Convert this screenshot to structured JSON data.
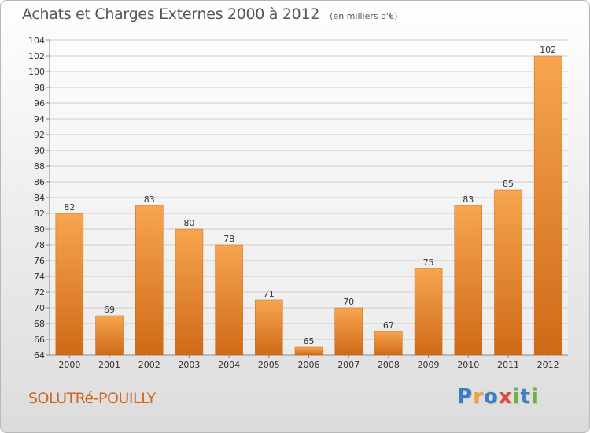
{
  "header": {
    "title": "Achats et Charges Externes 2000 à 2012",
    "subtitle": "(en milliers d'€)"
  },
  "footer": {
    "location": "SOLUTRé-POUILLY",
    "brand": "Proxiti",
    "brand_letters": [
      {
        "ch": "P",
        "color": "#3a7fc4"
      },
      {
        "ch": "r",
        "color": "#f2a22c"
      },
      {
        "ch": "o",
        "color": "#3a7fc4"
      },
      {
        "ch": "x",
        "color": "#e2473a"
      },
      {
        "ch": "i",
        "color": "#6ab344"
      },
      {
        "ch": "t",
        "color": "#3a7fc4"
      },
      {
        "ch": "i",
        "color": "#6ab344"
      }
    ]
  },
  "chart_data": {
    "type": "bar",
    "title": "Achats et Charges Externes 2000 à 2012",
    "subtitle": "(en milliers d'€)",
    "categories": [
      "2000",
      "2001",
      "2002",
      "2003",
      "2004",
      "2005",
      "2006",
      "2007",
      "2008",
      "2009",
      "2010",
      "2011",
      "2012"
    ],
    "values": [
      82,
      69,
      83,
      80,
      78,
      71,
      65,
      70,
      67,
      75,
      83,
      85,
      102
    ],
    "ylim": [
      64,
      104
    ],
    "yticks": [
      64,
      66,
      68,
      70,
      72,
      74,
      76,
      78,
      80,
      82,
      84,
      86,
      88,
      90,
      92,
      94,
      96,
      98,
      100,
      102,
      104
    ],
    "grid": true,
    "bar_color": "#e8872e",
    "bar_color_light": "#f7a550",
    "bar_color_dark": "#cf6a17",
    "grid_color": "#cccccc"
  }
}
